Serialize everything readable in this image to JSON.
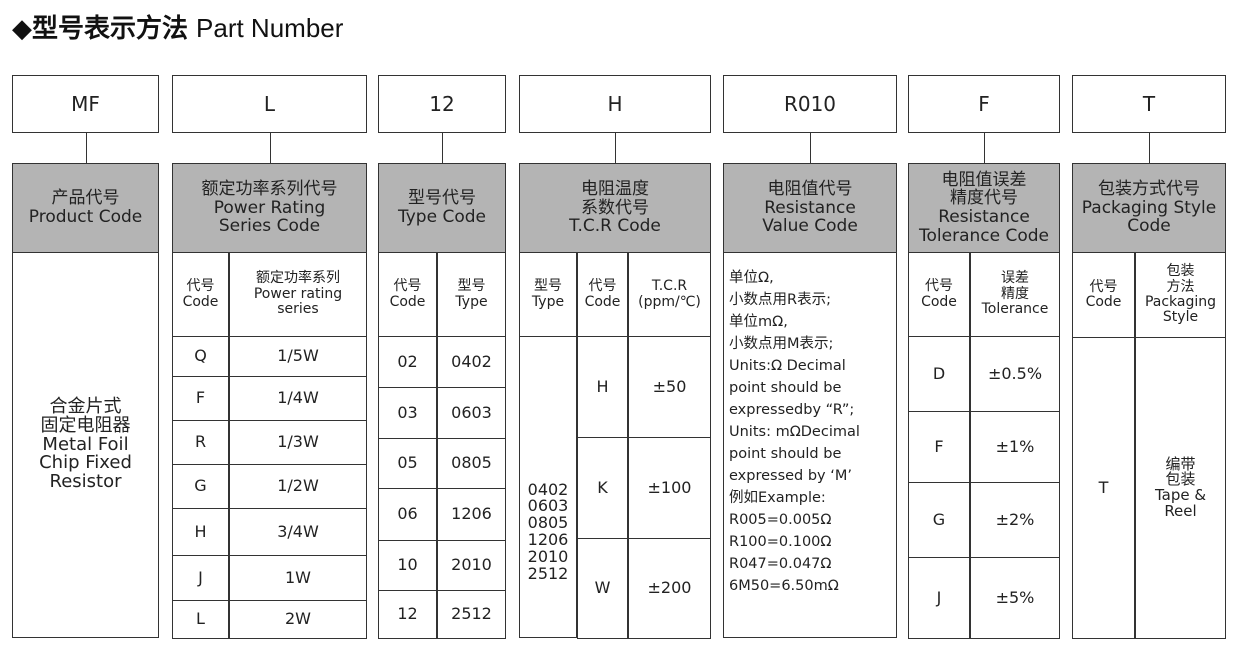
{
  "title": {
    "bullet": "◆",
    "cn": "型号表示方法",
    "en": "Part Number"
  },
  "header_color": "#b4b4b4",
  "columns": [
    {
      "code": "MF",
      "header": "产品代号\nProduct Code",
      "description": "合金片式\n固定电阻器\nMetal Foil\nChip Fixed\nResistor"
    },
    {
      "code": "L",
      "header": "额定功率系列代号\nPower Rating\nSeries Code",
      "sub_headers": [
        "代号\nCode",
        "额定功率系列\nPower rating\nseries"
      ],
      "rows": [
        [
          "Q",
          "1/5W"
        ],
        [
          "F",
          "1/4W"
        ],
        [
          "R",
          "1/3W"
        ],
        [
          "G",
          "1/2W"
        ],
        [
          "H",
          "3/4W"
        ],
        [
          "J",
          "1W"
        ],
        [
          "L",
          "2W"
        ]
      ]
    },
    {
      "code": "12",
      "header": "型号代号\nType Code",
      "sub_headers": [
        "代号\nCode",
        "型号\nType"
      ],
      "rows": [
        [
          "02",
          "0402"
        ],
        [
          "03",
          "0603"
        ],
        [
          "05",
          "0805"
        ],
        [
          "06",
          "1206"
        ],
        [
          "10",
          "2010"
        ],
        [
          "12",
          "2512"
        ]
      ]
    },
    {
      "code": "H",
      "header": "电阻温度\n系数代号\nT.C.R Code",
      "sub_headers": [
        "型号\nType",
        "代号\nCode",
        "T.C.R\n(ppm/℃)"
      ],
      "types": "0402\n0603\n0805\n1206\n2010\n2512",
      "rows": [
        [
          "H",
          "±50"
        ],
        [
          "K",
          "±100"
        ],
        [
          "W",
          "±200"
        ]
      ]
    },
    {
      "code": "R010",
      "header": "电阻值代号\nResistance\nValue Code",
      "description": "单位Ω,\n小数点用R表示;\n单位mΩ,\n小数点用M表示;\nUnits:Ω Decimal\npoint should be\nexpressedby “R”;\nUnits: mΩDecimal\npoint should be\nexpressed by ‘M’\n例如Example:\nR005=0.005Ω\nR100=0.100Ω\nR047=0.047Ω\n6M50=6.50mΩ"
    },
    {
      "code": "F",
      "header": "电阻值误差\n精度代号\nResistance\nTolerance Code",
      "sub_headers": [
        "代号\nCode",
        "误差\n精度\nTolerance"
      ],
      "rows": [
        [
          "D",
          "±0.5%"
        ],
        [
          "F",
          "±1%"
        ],
        [
          "G",
          "±2%"
        ],
        [
          "J",
          "±5%"
        ]
      ]
    },
    {
      "code": "T",
      "header": "包装方式代号\nPackaging Style\nCode",
      "sub_headers": [
        "代号\nCode",
        "包装\n方法\nPackaging\nStyle"
      ],
      "rows": [
        [
          "T",
          "编带\n包装\nTape &\nReel"
        ]
      ]
    }
  ]
}
